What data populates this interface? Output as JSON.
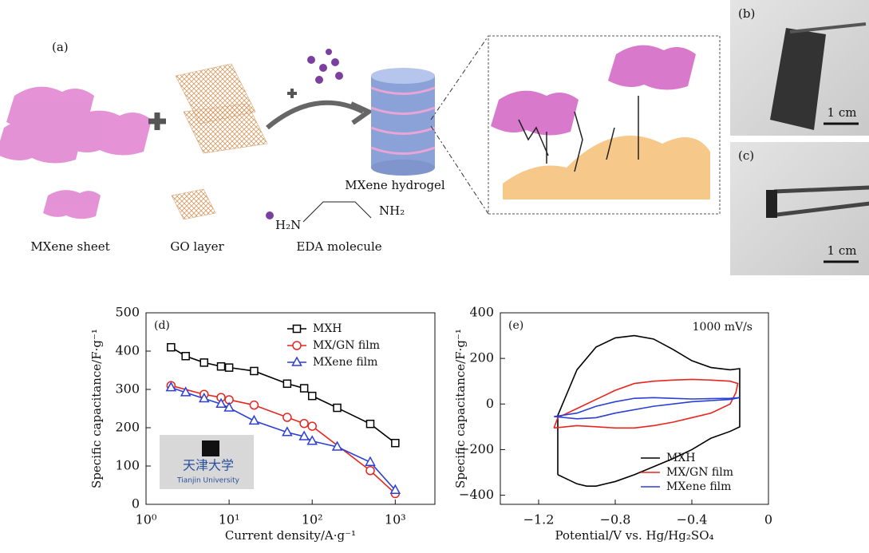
{
  "figure": {
    "panels": [
      "(a)",
      "(b)",
      "(c)"
    ],
    "labels": {
      "sheet": "MXene sheet",
      "go": "GO layer",
      "eda": "EDA molecule",
      "hydrogel": "MXene hydrogel",
      "h2n": "H₂N",
      "nh2": "NH₂"
    },
    "scale_bars": [
      "1 cm",
      "1 cm"
    ]
  },
  "chart_data": [
    {
      "type": "line",
      "panel": "(d)",
      "x_label": "Current density/A·g⁻¹",
      "y_label": "Specific capacitance/F·g⁻¹",
      "xscale": "log",
      "xlim": [
        1,
        3000
      ],
      "ylim": [
        0,
        500
      ],
      "xticks": [
        {
          "value": 1,
          "label": "10⁰"
        },
        {
          "value": 10,
          "label": "10¹"
        },
        {
          "value": 100,
          "label": "10²"
        },
        {
          "value": 1000,
          "label": "10³"
        }
      ],
      "yticks": [
        0,
        100,
        200,
        300,
        400,
        500
      ],
      "legend": "upper right",
      "inset_text": [
        "天津大学",
        "Tianjin University"
      ],
      "series": [
        {
          "name": "MXH",
          "color": "#000000",
          "marker": "square",
          "x": [
            2,
            3,
            5,
            8,
            10,
            20,
            50,
            80,
            100,
            200,
            500,
            1000
          ],
          "values": [
            410,
            387,
            370,
            360,
            357,
            348,
            315,
            303,
            283,
            252,
            210,
            160
          ]
        },
        {
          "name": "MX/GN film",
          "color": "#e8251e",
          "marker": "circle",
          "x": [
            2,
            5,
            8,
            10,
            20,
            50,
            80,
            100,
            500,
            1000
          ],
          "values": [
            310,
            287,
            279,
            273,
            259,
            227,
            211,
            204,
            88,
            28
          ]
        },
        {
          "name": "MXene film",
          "color": "#2b3fd6",
          "marker": "triangle",
          "x": [
            2,
            3,
            5,
            8,
            10,
            20,
            50,
            80,
            100,
            200,
            500,
            1000
          ],
          "values": [
            305,
            292,
            276,
            262,
            252,
            218,
            188,
            177,
            165,
            150,
            110,
            37
          ]
        }
      ]
    },
    {
      "type": "line",
      "panel": "(e)",
      "annotation": "1000 mV/s",
      "x_label": "Potential/V vs. Hg/Hg₂SO₄",
      "y_label": "Specific capacitance/F·g⁻¹",
      "xlim": [
        -1.4,
        0
      ],
      "ylim": [
        -440,
        400
      ],
      "xticks": [
        {
          "value": -1.2,
          "label": "−1.2"
        },
        {
          "value": -0.8,
          "label": "−0.8"
        },
        {
          "value": -0.4,
          "label": "−0.4"
        },
        0
      ],
      "yticks": [
        {
          "value": -400,
          "label": "−400"
        },
        {
          "value": -200,
          "label": "−200"
        },
        0,
        200,
        400
      ],
      "legend": "lower right",
      "series": [
        {
          "name": "MXH",
          "color": "#000000",
          "x": [
            -1.1,
            -1.1,
            -1.05,
            -1.0,
            -0.9,
            -0.8,
            -0.7,
            -0.6,
            -0.5,
            -0.4,
            -0.3,
            -0.2,
            -0.15,
            -0.15,
            -0.2,
            -0.3,
            -0.4,
            -0.5,
            -0.6,
            -0.7,
            -0.8,
            -0.9,
            -0.95,
            -1.0,
            -1.05,
            -1.1
          ],
          "values": [
            -310,
            -50,
            50,
            150,
            250,
            290,
            300,
            285,
            240,
            190,
            160,
            150,
            155,
            -100,
            -120,
            -150,
            -200,
            -240,
            -275,
            -310,
            -340,
            -360,
            -360,
            -350,
            -330,
            -310
          ]
        },
        {
          "name": "MX/GN film",
          "color": "#e8251e",
          "x": [
            -1.12,
            -1.1,
            -1.0,
            -0.9,
            -0.8,
            -0.7,
            -0.6,
            -0.5,
            -0.4,
            -0.3,
            -0.2,
            -0.16,
            -0.17,
            -0.2,
            -0.3,
            -0.4,
            -0.5,
            -0.6,
            -0.7,
            -0.8,
            -0.9,
            -1.0,
            -1.12
          ],
          "values": [
            -105,
            -60,
            -20,
            20,
            60,
            90,
            100,
            105,
            108,
            105,
            100,
            90,
            50,
            0,
            -40,
            -60,
            -80,
            -95,
            -105,
            -105,
            -100,
            -95,
            -105
          ]
        },
        {
          "name": "MXene film",
          "color": "#2b3fd6",
          "x": [
            -1.12,
            -1.0,
            -0.9,
            -0.8,
            -0.7,
            -0.6,
            -0.5,
            -0.4,
            -0.2,
            -0.15,
            -0.2,
            -0.4,
            -0.6,
            -0.8,
            -0.9,
            -1.0,
            -1.12
          ],
          "values": [
            -55,
            -40,
            -10,
            10,
            25,
            28,
            25,
            22,
            25,
            28,
            20,
            10,
            -10,
            -40,
            -60,
            -65,
            -55
          ]
        }
      ]
    }
  ]
}
